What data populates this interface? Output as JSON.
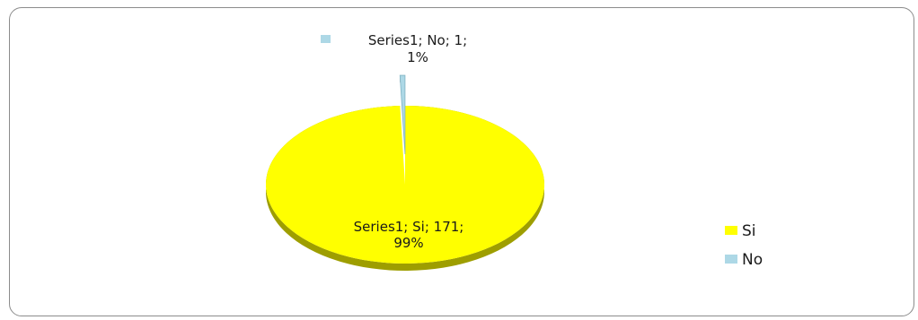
{
  "chart_data": {
    "type": "pie",
    "series_name": "Series1",
    "categories": [
      "Si",
      "No"
    ],
    "values": [
      171,
      1
    ],
    "percent_labels": [
      "99%",
      "1%"
    ],
    "colors": [
      "#ffff00",
      "#add8e6"
    ],
    "data_labels": [
      {
        "line1": "Series1; Si; 171;",
        "line2": "99%"
      },
      {
        "line1": "Series1; No; 1;",
        "line2": "1%"
      }
    ],
    "legend": {
      "position": "right",
      "entries": [
        {
          "label": "Si",
          "color": "#ffff00"
        },
        {
          "label": "No",
          "color": "#add8e6"
        }
      ]
    },
    "style": "3d-pie, exploded small slice"
  }
}
